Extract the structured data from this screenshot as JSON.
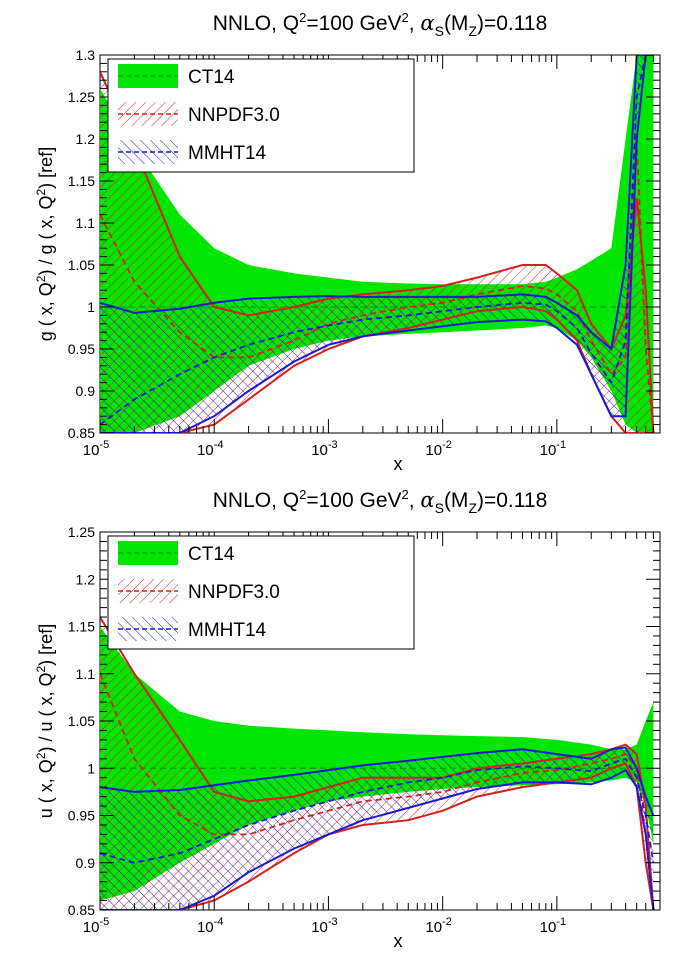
{
  "chart_data": [
    {
      "type": "line",
      "title": {
        "pre": "NNLO, Q",
        "sup1": "2",
        "mid": "=100 GeV",
        "sup2": "2",
        "post1": ", ",
        "alpha": "α",
        "alphaSub": "S",
        "paren": "(M",
        "zSub": "Z",
        "post2": ")=0.118"
      },
      "xlabel": "x",
      "ylabel": {
        "part1": "g ( x, Q",
        "sup1": "2",
        "part2": ") / g ( x, Q",
        "sup2": "2",
        "part3": ") [ref]"
      },
      "xscale": "log",
      "xlim": [
        1e-05,
        0.8
      ],
      "ylim": [
        0.85,
        1.3
      ],
      "yticks": [
        0.85,
        0.9,
        0.95,
        1,
        1.05,
        1.1,
        1.15,
        1.2,
        1.25,
        1.3
      ],
      "ytick_labels": [
        "0.85",
        "0.9",
        "0.95",
        "1",
        "1.05",
        "1.1",
        "1.15",
        "1.2",
        "1.25",
        "1.3"
      ],
      "xtick_labels": [
        {
          "base": "10",
          "exp": "-5"
        },
        {
          "base": "10",
          "exp": "-4"
        },
        {
          "base": "10",
          "exp": "-3"
        },
        {
          "base": "10",
          "exp": "-2"
        },
        {
          "base": "10",
          "exp": "-1"
        }
      ],
      "legend": {
        "position": "top-left",
        "entries": [
          "CT14",
          "NNPDF3.0",
          "MMHT14"
        ]
      },
      "x": [
        1e-05,
        2e-05,
        5e-05,
        0.0001,
        0.0002,
        0.0005,
        0.001,
        0.002,
        0.005,
        0.01,
        0.02,
        0.05,
        0.08,
        0.1,
        0.15,
        0.2,
        0.3,
        0.4,
        0.5,
        0.6,
        0.7
      ],
      "series": [
        {
          "name": "CT14",
          "upper": [
            1.26,
            1.19,
            1.11,
            1.07,
            1.05,
            1.04,
            1.035,
            1.03,
            1.028,
            1.027,
            1.027,
            1.027,
            1.03,
            1.035,
            1.045,
            1.055,
            1.07,
            1.2,
            1.3,
            1.3,
            1.3
          ],
          "central": [
            1.0,
            1.0,
            1.0,
            1.0,
            1.0,
            1.0,
            1.0,
            1.0,
            1.0,
            1.0,
            1.0,
            1.0,
            1.0,
            1.0,
            1.0,
            1.0,
            1.0,
            1.0,
            1.0,
            1.0,
            1.0
          ],
          "lower": [
            0.85,
            0.85,
            0.87,
            0.9,
            0.93,
            0.95,
            0.96,
            0.965,
            0.968,
            0.97,
            0.972,
            0.975,
            0.978,
            0.975,
            0.96,
            0.94,
            0.9,
            0.86,
            0.85,
            0.85,
            0.85
          ]
        },
        {
          "name": "NNPDF3.0",
          "upper": [
            1.28,
            1.19,
            1.06,
            1.0,
            0.99,
            1.0,
            1.01,
            1.015,
            1.02,
            1.025,
            1.035,
            1.05,
            1.05,
            1.04,
            1.02,
            0.98,
            0.95,
            0.99,
            1.13,
            1.02,
            0.85
          ],
          "central": [
            1.11,
            1.03,
            0.97,
            0.94,
            0.94,
            0.96,
            0.98,
            0.99,
            1.0,
            1.005,
            1.015,
            1.025,
            1.022,
            1.015,
            0.995,
            0.96,
            0.92,
            0.94,
            1.2,
            0.95,
            0.85
          ],
          "lower": [
            0.85,
            0.85,
            0.85,
            0.86,
            0.89,
            0.93,
            0.95,
            0.965,
            0.975,
            0.985,
            0.995,
            1.0,
            0.995,
            0.985,
            0.96,
            0.92,
            0.87,
            0.85,
            0.85,
            0.85,
            0.85
          ]
        },
        {
          "name": "MMHT14",
          "upper": [
            1.005,
            0.993,
            0.998,
            1.005,
            1.01,
            1.012,
            1.013,
            1.012,
            1.012,
            1.012,
            1.012,
            1.015,
            1.012,
            1.005,
            0.99,
            0.97,
            0.95,
            1.05,
            1.3,
            1.3,
            1.3
          ],
          "central": [
            0.86,
            0.89,
            0.92,
            0.94,
            0.955,
            0.97,
            0.978,
            0.985,
            0.99,
            0.995,
            1.0,
            1.005,
            1.003,
            0.995,
            0.975,
            0.945,
            0.91,
            0.96,
            1.25,
            1.3,
            1.3
          ],
          "lower": [
            0.85,
            0.85,
            0.85,
            0.87,
            0.9,
            0.935,
            0.955,
            0.965,
            0.972,
            0.977,
            0.982,
            0.985,
            0.983,
            0.975,
            0.955,
            0.92,
            0.87,
            0.87,
            1.2,
            1.3,
            1.3
          ]
        }
      ]
    },
    {
      "type": "line",
      "title": {
        "pre": "NNLO, Q",
        "sup1": "2",
        "mid": "=100 GeV",
        "sup2": "2",
        "post1": ", ",
        "alpha": "α",
        "alphaSub": "S",
        "paren": "(M",
        "zSub": "Z",
        "post2": ")=0.118"
      },
      "xlabel": "x",
      "ylabel": {
        "part1": "u ( x, Q",
        "sup1": "2",
        "part2": ") / u ( x, Q",
        "sup2": "2",
        "part3": ") [ref]"
      },
      "xscale": "log",
      "xlim": [
        1e-05,
        0.8
      ],
      "ylim": [
        0.85,
        1.25
      ],
      "yticks": [
        0.85,
        0.9,
        0.95,
        1,
        1.05,
        1.1,
        1.15,
        1.2,
        1.25
      ],
      "ytick_labels": [
        "0.85",
        "0.9",
        "0.95",
        "1",
        "1.05",
        "1.1",
        "1.15",
        "1.2",
        "1.25"
      ],
      "xtick_labels": [
        {
          "base": "10",
          "exp": "-5"
        },
        {
          "base": "10",
          "exp": "-4"
        },
        {
          "base": "10",
          "exp": "-3"
        },
        {
          "base": "10",
          "exp": "-2"
        },
        {
          "base": "10",
          "exp": "-1"
        }
      ],
      "legend": {
        "position": "top-left",
        "entries": [
          "CT14",
          "NNPDF3.0",
          "MMHT14"
        ]
      },
      "x": [
        1e-05,
        2e-05,
        5e-05,
        0.0001,
        0.0002,
        0.0005,
        0.001,
        0.002,
        0.005,
        0.01,
        0.02,
        0.05,
        0.1,
        0.2,
        0.3,
        0.4,
        0.5,
        0.6,
        0.7
      ],
      "series": [
        {
          "name": "CT14",
          "upper": [
            1.15,
            1.1,
            1.06,
            1.05,
            1.045,
            1.042,
            1.04,
            1.038,
            1.036,
            1.035,
            1.034,
            1.033,
            1.03,
            1.025,
            1.02,
            1.02,
            1.025,
            1.05,
            1.07
          ],
          "central": [
            1.0,
            1.0,
            1.0,
            1.0,
            1.0,
            1.0,
            1.0,
            1.0,
            1.0,
            1.0,
            1.0,
            1.0,
            1.0,
            1.0,
            1.0,
            1.0,
            1.0,
            1.0,
            1.0
          ],
          "lower": [
            0.86,
            0.87,
            0.9,
            0.92,
            0.94,
            0.955,
            0.965,
            0.97,
            0.975,
            0.978,
            0.98,
            0.982,
            0.983,
            0.985,
            0.987,
            0.99,
            0.985,
            0.96,
            0.92
          ]
        },
        {
          "name": "NNPDF3.0",
          "upper": [
            1.16,
            1.1,
            1.03,
            0.975,
            0.965,
            0.97,
            0.98,
            0.99,
            0.99,
            0.99,
            1.0,
            1.005,
            1.01,
            1.015,
            1.02,
            1.025,
            1.015,
            0.96,
            0.85
          ],
          "central": [
            1.1,
            1.01,
            0.95,
            0.93,
            0.93,
            0.945,
            0.955,
            0.965,
            0.97,
            0.975,
            0.985,
            0.995,
            0.998,
            1.005,
            1.01,
            1.015,
            1.0,
            0.93,
            0.85
          ],
          "lower": [
            0.85,
            0.85,
            0.85,
            0.86,
            0.88,
            0.91,
            0.93,
            0.94,
            0.945,
            0.955,
            0.97,
            0.98,
            0.985,
            0.99,
            1.0,
            1.005,
            0.98,
            0.9,
            0.85
          ]
        },
        {
          "name": "MMHT14",
          "upper": [
            0.98,
            0.975,
            0.977,
            0.982,
            0.987,
            0.993,
            0.998,
            1.003,
            1.008,
            1.012,
            1.016,
            1.02,
            1.015,
            1.01,
            1.02,
            1.022,
            1.0,
            0.97,
            0.95
          ],
          "central": [
            0.91,
            0.9,
            0.91,
            0.925,
            0.94,
            0.955,
            0.965,
            0.975,
            0.985,
            0.99,
            0.998,
            1.002,
            1.0,
            0.997,
            1.005,
            1.01,
            0.99,
            0.95,
            0.9
          ],
          "lower": [
            0.85,
            0.85,
            0.85,
            0.865,
            0.89,
            0.915,
            0.93,
            0.945,
            0.958,
            0.968,
            0.978,
            0.985,
            0.985,
            0.983,
            0.99,
            0.998,
            0.98,
            0.93,
            0.85
          ]
        }
      ]
    }
  ],
  "colors": {
    "ct14_fill": "#00e600",
    "ct14_line": "#00a000",
    "nnpdf": "#d42020",
    "mmht": "#1a1ad4",
    "frame": "#000000"
  }
}
